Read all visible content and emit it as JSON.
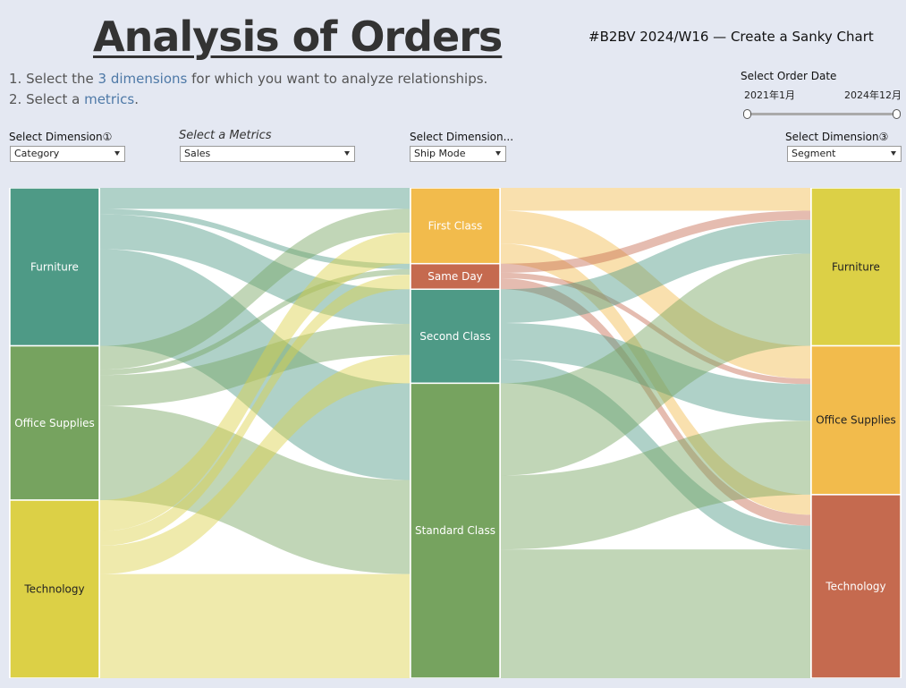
{
  "title": "Analysis of Orders",
  "tag": "#B2BV 2024/W16  — Create a Sanky Chart",
  "instructions": {
    "line1_pre": "1. Select the ",
    "line1_hl": "3 dimensions",
    "line1_post": " for which you want to analyze relationships.",
    "line2_pre": "2. Select a ",
    "line2_hl": "metrics",
    "line2_post": "."
  },
  "controls": {
    "dim1": {
      "label": "Select Dimension①",
      "value": "Category"
    },
    "metric": {
      "label": "Select a Metrics",
      "value": "Sales"
    },
    "dim2": {
      "label": "Select Dimension...",
      "value": "Ship Mode"
    },
    "dim3": {
      "label": "Select Dimension③",
      "value": "Segment"
    },
    "date": {
      "label": "Select Order Date",
      "start": "2021年1月",
      "end": "2024年12月"
    }
  },
  "chart_data": {
    "type": "sankey",
    "columns": [
      {
        "dimension": "Category",
        "nodes": [
          {
            "name": "Furniture",
            "color": "#4e9a86",
            "text": "#ffffff"
          },
          {
            "name": "Office Supplies",
            "color": "#76a35f",
            "text": "#ffffff"
          },
          {
            "name": "Technology",
            "color": "#dcd046",
            "text": "#222222"
          }
        ]
      },
      {
        "dimension": "Ship Mode",
        "nodes": [
          {
            "name": "First Class",
            "color": "#f2bb4c",
            "text": "#ffffff"
          },
          {
            "name": "Same Day",
            "color": "#c56a4f",
            "text": "#ffffff"
          },
          {
            "name": "Second Class",
            "color": "#4e9a86",
            "text": "#ffffff"
          },
          {
            "name": "Standard Class",
            "color": "#76a35f",
            "text": "#ffffff"
          }
        ]
      },
      {
        "dimension": "Segment",
        "nodes": [
          {
            "name": "Furniture",
            "color": "#dcd046",
            "text": "#222222"
          },
          {
            "name": "Office Supplies",
            "color": "#f2bb4c",
            "text": "#222222"
          },
          {
            "name": "Technology",
            "color": "#c56a4f",
            "text": "#ffffff"
          }
        ]
      }
    ],
    "flows_left": [
      {
        "source": "Furniture",
        "target": "First Class",
        "value": 23
      },
      {
        "source": "Furniture",
        "target": "Same Day",
        "value": 6
      },
      {
        "source": "Furniture",
        "target": "Second Class",
        "value": 38
      },
      {
        "source": "Furniture",
        "target": "Standard Class",
        "value": 106
      },
      {
        "source": "Office Supplies",
        "target": "First Class",
        "value": 26
      },
      {
        "source": "Office Supplies",
        "target": "Same Day",
        "value": 6
      },
      {
        "source": "Office Supplies",
        "target": "Second Class",
        "value": 34
      },
      {
        "source": "Office Supplies",
        "target": "Standard Class",
        "value": 103
      },
      {
        "source": "Technology",
        "target": "First Class",
        "value": 34
      },
      {
        "source": "Technology",
        "target": "Same Day",
        "value": 16
      },
      {
        "source": "Technology",
        "target": "Second Class",
        "value": 31
      },
      {
        "source": "Technology",
        "target": "Standard Class",
        "value": 114
      }
    ],
    "flows_right": [
      {
        "source": "First Class",
        "target": "Furniture",
        "value": 25
      },
      {
        "source": "First Class",
        "target": "Office Supplies",
        "value": 36
      },
      {
        "source": "First Class",
        "target": "Technology",
        "value": 22
      },
      {
        "source": "Same Day",
        "target": "Furniture",
        "value": 10
      },
      {
        "source": "Same Day",
        "target": "Office Supplies",
        "value": 6
      },
      {
        "source": "Same Day",
        "target": "Technology",
        "value": 12
      },
      {
        "source": "Second Class",
        "target": "Furniture",
        "value": 37
      },
      {
        "source": "Second Class",
        "target": "Office Supplies",
        "value": 40
      },
      {
        "source": "Second Class",
        "target": "Technology",
        "value": 26
      },
      {
        "source": "Standard Class",
        "target": "Furniture",
        "value": 101
      },
      {
        "source": "Standard Class",
        "target": "Office Supplies",
        "value": 81
      },
      {
        "source": "Standard Class",
        "target": "Technology",
        "value": 141
      }
    ]
  }
}
